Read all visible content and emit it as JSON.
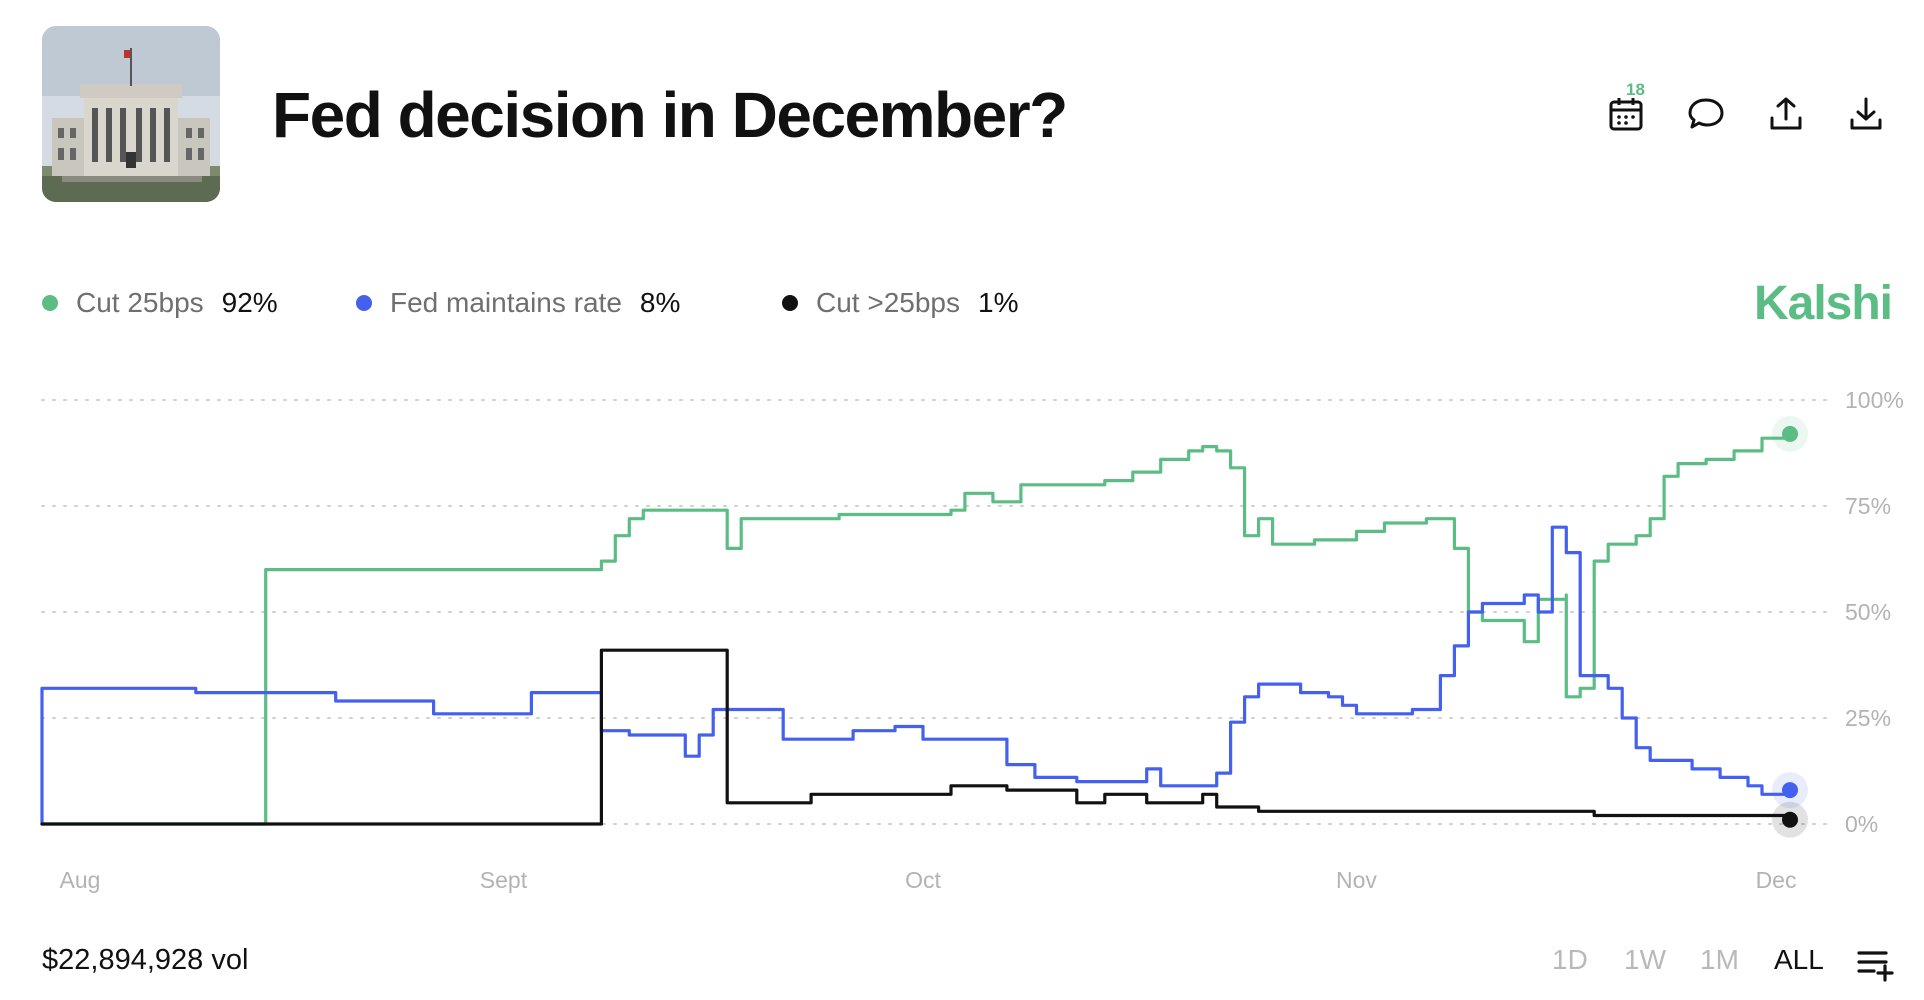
{
  "header": {
    "title": "Fed decision in December?",
    "calendar_badge": "18"
  },
  "legend": [
    {
      "name": "Cut 25bps",
      "value": "92%",
      "color": "#5cbd84"
    },
    {
      "name": "Fed maintains rate",
      "value": "8%",
      "color": "#4361ee"
    },
    {
      "name": "Cut >25bps",
      "value": "1%",
      "color": "#111111"
    }
  ],
  "brand": "Kalshi",
  "footer": {
    "volume": "$22,894,928 vol",
    "ranges": [
      "1D",
      "1W",
      "1M",
      "ALL"
    ],
    "active_range": "ALL"
  },
  "icons": [
    "calendar-icon",
    "comment-icon",
    "share-icon",
    "download-icon",
    "list-add-icon"
  ],
  "chart_data": {
    "type": "line",
    "x_tick_labels": [
      "Aug",
      "Sept",
      "Oct",
      "Nov",
      "Dec"
    ],
    "y_tick_labels": [
      "100%",
      "75%",
      "50%",
      "25%",
      "0%"
    ],
    "ylim": [
      0,
      100
    ],
    "grid": true,
    "series": [
      {
        "name": "Cut 25bps",
        "color": "#5cbd84",
        "points": [
          [
            "Jul 30",
            0
          ],
          [
            "Aug 15",
            0
          ],
          [
            "Aug 15",
            60
          ],
          [
            "Sep 7",
            60
          ],
          [
            "Sep 8",
            62
          ],
          [
            "Sep 9",
            68
          ],
          [
            "Sep 10",
            72
          ],
          [
            "Sep 11",
            74
          ],
          [
            "Sep 15",
            74
          ],
          [
            "Sep 17",
            73
          ],
          [
            "Sep 17",
            65
          ],
          [
            "Sep 18",
            72
          ],
          [
            "Sep 23",
            72
          ],
          [
            "Sep 25",
            73
          ],
          [
            "Oct 3",
            74
          ],
          [
            "Oct 4",
            78
          ],
          [
            "Oct 6",
            76
          ],
          [
            "Oct 8",
            80
          ],
          [
            "Oct 14",
            81
          ],
          [
            "Oct 16",
            83
          ],
          [
            "Oct 18",
            86
          ],
          [
            "Oct 20",
            88
          ],
          [
            "Oct 21",
            89
          ],
          [
            "Oct 22",
            88
          ],
          [
            "Oct 23",
            84
          ],
          [
            "Oct 24",
            68
          ],
          [
            "Oct 25",
            72
          ],
          [
            "Oct 26",
            66
          ],
          [
            "Oct 29",
            67
          ],
          [
            "Nov 1",
            69
          ],
          [
            "Nov 3",
            71
          ],
          [
            "Nov 6",
            72
          ],
          [
            "Nov 7",
            72
          ],
          [
            "Nov 8",
            65
          ],
          [
            "Nov 9",
            50
          ],
          [
            "Nov 10",
            48
          ],
          [
            "Nov 12",
            48
          ],
          [
            "Nov 13",
            43
          ],
          [
            "Nov 14",
            53
          ],
          [
            "Nov 16",
            54
          ],
          [
            "Nov 16",
            30
          ],
          [
            "Nov 17",
            32
          ],
          [
            "Nov 18",
            62
          ],
          [
            "Nov 19",
            66
          ],
          [
            "Nov 21",
            68
          ],
          [
            "Nov 22",
            72
          ],
          [
            "Nov 23",
            82
          ],
          [
            "Nov 24",
            85
          ],
          [
            "Nov 26",
            86
          ],
          [
            "Nov 28",
            88
          ],
          [
            "Nov 30",
            91
          ],
          [
            "Dec 2",
            92
          ]
        ]
      },
      {
        "name": "Fed maintains rate",
        "color": "#4361ee",
        "points": [
          [
            "Jul 30",
            0
          ],
          [
            "Jul 30",
            32
          ],
          [
            "Aug 7",
            32
          ],
          [
            "Aug 10",
            31
          ],
          [
            "Aug 20",
            29
          ],
          [
            "Aug 27",
            29
          ],
          [
            "Aug 27",
            26
          ],
          [
            "Sep 3",
            26
          ],
          [
            "Sep 3",
            31
          ],
          [
            "Sep 8",
            31
          ],
          [
            "Sep 8",
            22
          ],
          [
            "Sep 10",
            21
          ],
          [
            "Sep 14",
            21
          ],
          [
            "Sep 14",
            16
          ],
          [
            "Sep 15",
            21
          ],
          [
            "Sep 16",
            27
          ],
          [
            "Sep 20",
            27
          ],
          [
            "Sep 21",
            20
          ],
          [
            "Sep 26",
            22
          ],
          [
            "Sep 29",
            23
          ],
          [
            "Oct 1",
            23
          ],
          [
            "Oct 1",
            20
          ],
          [
            "Oct 5",
            20
          ],
          [
            "Oct 7",
            14
          ],
          [
            "Oct 9",
            11
          ],
          [
            "Oct 12",
            10
          ],
          [
            "Oct 17",
            10
          ],
          [
            "Oct 17",
            13
          ],
          [
            "Oct 18",
            9
          ],
          [
            "Oct 21",
            9
          ],
          [
            "Oct 22",
            12
          ],
          [
            "Oct 23",
            24
          ],
          [
            "Oct 24",
            30
          ],
          [
            "Oct 25",
            33
          ],
          [
            "Oct 28",
            31
          ],
          [
            "Oct 30",
            30
          ],
          [
            "Oct 31",
            28
          ],
          [
            "Nov 1",
            26
          ],
          [
            "Nov 4",
            26
          ],
          [
            "Nov 5",
            27
          ],
          [
            "Nov 6",
            27
          ],
          [
            "Nov 7",
            35
          ],
          [
            "Nov 8",
            42
          ],
          [
            "Nov 9",
            50
          ],
          [
            "Nov 10",
            52
          ],
          [
            "Nov 12",
            52
          ],
          [
            "Nov 13",
            54
          ],
          [
            "Nov 14",
            50
          ],
          [
            "Nov 15",
            70
          ],
          [
            "Nov 16",
            64
          ],
          [
            "Nov 17",
            35
          ],
          [
            "Nov 19",
            32
          ],
          [
            "Nov 20",
            25
          ],
          [
            "Nov 21",
            18
          ],
          [
            "Nov 22",
            15
          ],
          [
            "Nov 25",
            13
          ],
          [
            "Nov 27",
            11
          ],
          [
            "Nov 29",
            9
          ],
          [
            "Nov 30",
            7
          ],
          [
            "Dec 2",
            8
          ]
        ]
      },
      {
        "name": "Cut >25bps",
        "color": "#111111",
        "points": [
          [
            "Jul 30",
            0
          ],
          [
            "Sep 8",
            0
          ],
          [
            "Sep 8",
            41
          ],
          [
            "Sep 17",
            41
          ],
          [
            "Sep 17",
            5
          ],
          [
            "Sep 22",
            5
          ],
          [
            "Sep 23",
            7
          ],
          [
            "Oct 2",
            7
          ],
          [
            "Oct 3",
            9
          ],
          [
            "Oct 6",
            9
          ],
          [
            "Oct 7",
            8
          ],
          [
            "Oct 12",
            8
          ],
          [
            "Oct 12",
            5
          ],
          [
            "Oct 14",
            7
          ],
          [
            "Oct 17",
            7
          ],
          [
            "Oct 17",
            5
          ],
          [
            "Oct 20",
            5
          ],
          [
            "Oct 21",
            7
          ],
          [
            "Oct 22",
            4
          ],
          [
            "Oct 25",
            3
          ],
          [
            "Nov 5",
            3
          ],
          [
            "Nov 8",
            3
          ],
          [
            "Nov 16",
            3
          ],
          [
            "Nov 18",
            2
          ],
          [
            "Nov 25",
            2
          ],
          [
            "Dec 2",
            1
          ]
        ]
      }
    ]
  }
}
